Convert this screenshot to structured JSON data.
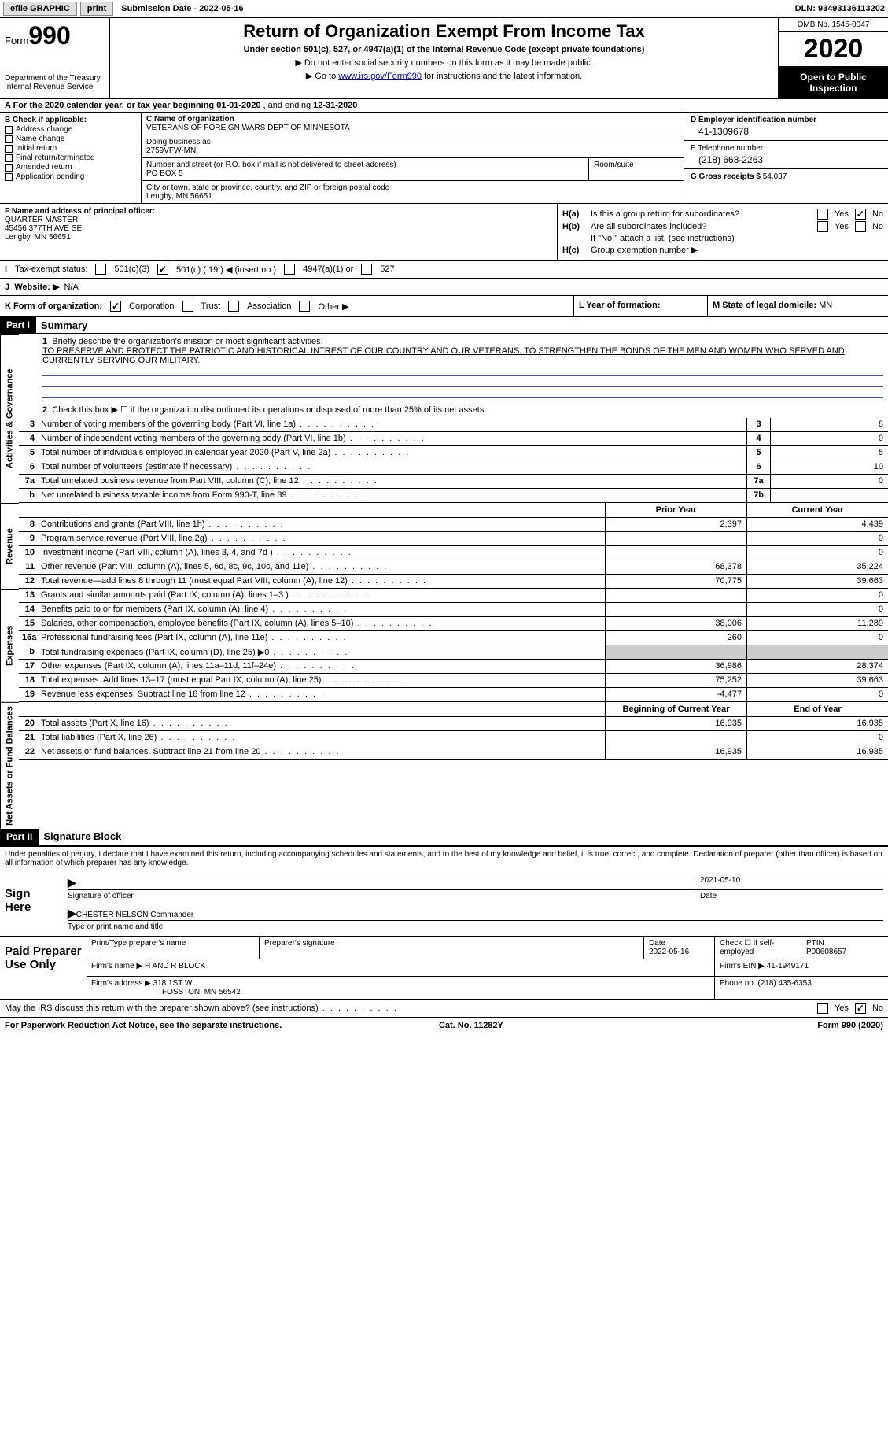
{
  "topbar": {
    "efile": "efile GRAPHIC",
    "print": "print",
    "submission_label": "Submission Date - ",
    "submission_date": "2022-05-16",
    "dln_label": "DLN: ",
    "dln": "93493136113202"
  },
  "header": {
    "form_word": "Form",
    "form_num": "990",
    "dept1": "Department of the Treasury",
    "dept2": "Internal Revenue Service",
    "title": "Return of Organization Exempt From Income Tax",
    "subtitle": "Under section 501(c), 527, or 4947(a)(1) of the Internal Revenue Code (except private foundations)",
    "note1": "▶ Do not enter social security numbers on this form as it may be made public.",
    "note2_pre": "▶ Go to ",
    "note2_link": "www.irs.gov/Form990",
    "note2_post": " for instructions and the latest information.",
    "omb": "OMB No. 1545-0047",
    "year": "2020",
    "open1": "Open to Public",
    "open2": "Inspection"
  },
  "period": {
    "prefix": "A For the 2020 calendar year, or tax year beginning ",
    "begin": "01-01-2020",
    "mid": " , and ending ",
    "end": "12-31-2020"
  },
  "boxB": {
    "label": "B Check if applicable:",
    "opts": [
      "Address change",
      "Name change",
      "Initial return",
      "Final return/terminated",
      "Amended return",
      "Application pending"
    ]
  },
  "boxC": {
    "name_label": "C Name of organization",
    "name": "VETERANS OF FOREIGN WARS DEPT OF MINNESOTA",
    "dba_label": "Doing business as",
    "dba": "2759VFW-MN",
    "street_label": "Number and street (or P.O. box if mail is not delivered to street address)",
    "room_label": "Room/suite",
    "street": "PO BOX 5",
    "city_label": "City or town, state or province, country, and ZIP or foreign postal code",
    "city": "Lengby, MN  56651"
  },
  "boxD": {
    "ein_label": "D Employer identification number",
    "ein": "41-1309678",
    "phone_label": "E Telephone number",
    "phone": "(218) 668-2263",
    "gross_label": "G Gross receipts $ ",
    "gross": "54,037"
  },
  "boxF": {
    "label": "F Name and address of principal officer:",
    "name": "QUARTER MASTER",
    "street": "45456 377TH AVE SE",
    "city": "Lengby, MN  56651"
  },
  "boxH": {
    "a_label": "H(a)",
    "a_text": "Is this a group return for subordinates?",
    "b_label": "H(b)",
    "b_text": "Are all subordinates included?",
    "b_note": "If \"No,\" attach a list. (see instructions)",
    "c_label": "H(c)",
    "c_text": "Group exemption number ▶",
    "yes": "Yes",
    "no": "No"
  },
  "rowI": {
    "label": "I",
    "text": "Tax-exempt status:",
    "o1": "501(c)(3)",
    "o2": "501(c) ( 19 ) ◀ (insert no.)",
    "o3": "4947(a)(1) or",
    "o4": "527"
  },
  "rowJ": {
    "label": "J",
    "text": "Website: ▶",
    "val": "N/A"
  },
  "rowK": {
    "label": "K Form of organization:",
    "o1": "Corporation",
    "o2": "Trust",
    "o3": "Association",
    "o4": "Other ▶",
    "l_label": "L Year of formation:",
    "m_label": "M State of legal domicile: ",
    "m_val": "MN"
  },
  "part1": {
    "tag": "Part I",
    "title": "Summary",
    "q1_label": "1",
    "q1_text": "Briefly describe the organization's mission or most significant activities:",
    "mission": "TO PRESERVE AND PROTECT THE PATRIOTIC AND HISTORICAL INTREST OF OUR COUNTRY AND OUR VETERANS, TO STRENGTHEN THE BONDS OF THE MEN AND WOMEN WHO SERVED AND CURRENTLY SERVING OUR MILITARY.",
    "q2_label": "2",
    "q2_text": "Check this box ▶ ☐ if the organization discontinued its operations or disposed of more than 25% of its net assets."
  },
  "side": {
    "gov": "Activities & Governance",
    "rev": "Revenue",
    "exp": "Expenses",
    "net": "Net Assets or Fund Balances"
  },
  "govLines": [
    {
      "n": "3",
      "d": "Number of voting members of the governing body (Part VI, line 1a)",
      "b": "3",
      "v": "8"
    },
    {
      "n": "4",
      "d": "Number of independent voting members of the governing body (Part VI, line 1b)",
      "b": "4",
      "v": "0"
    },
    {
      "n": "5",
      "d": "Total number of individuals employed in calendar year 2020 (Part V, line 2a)",
      "b": "5",
      "v": "5"
    },
    {
      "n": "6",
      "d": "Total number of volunteers (estimate if necessary)",
      "b": "6",
      "v": "10"
    },
    {
      "n": "7a",
      "d": "Total unrelated business revenue from Part VIII, column (C), line 12",
      "b": "7a",
      "v": "0"
    },
    {
      "n": "b",
      "d": "Net unrelated business taxable income from Form 990-T, line 39",
      "b": "7b",
      "v": ""
    }
  ],
  "colHeads": {
    "prior": "Prior Year",
    "current": "Current Year",
    "beg": "Beginning of Current Year",
    "end": "End of Year"
  },
  "revLines": [
    {
      "n": "8",
      "d": "Contributions and grants (Part VIII, line 1h)",
      "p": "2,397",
      "c": "4,439"
    },
    {
      "n": "9",
      "d": "Program service revenue (Part VIII, line 2g)",
      "p": "",
      "c": "0"
    },
    {
      "n": "10",
      "d": "Investment income (Part VIII, column (A), lines 3, 4, and 7d )",
      "p": "",
      "c": "0"
    },
    {
      "n": "11",
      "d": "Other revenue (Part VIII, column (A), lines 5, 6d, 8c, 9c, 10c, and 11e)",
      "p": "68,378",
      "c": "35,224"
    },
    {
      "n": "12",
      "d": "Total revenue—add lines 8 through 11 (must equal Part VIII, column (A), line 12)",
      "p": "70,775",
      "c": "39,663"
    }
  ],
  "expLines": [
    {
      "n": "13",
      "d": "Grants and similar amounts paid (Part IX, column (A), lines 1–3 )",
      "p": "",
      "c": "0"
    },
    {
      "n": "14",
      "d": "Benefits paid to or for members (Part IX, column (A), line 4)",
      "p": "",
      "c": "0"
    },
    {
      "n": "15",
      "d": "Salaries, other compensation, employee benefits (Part IX, column (A), lines 5–10)",
      "p": "38,006",
      "c": "11,289"
    },
    {
      "n": "16a",
      "d": "Professional fundraising fees (Part IX, column (A), line 11e)",
      "p": "260",
      "c": "0"
    },
    {
      "n": "b",
      "d": "Total fundraising expenses (Part IX, column (D), line 25) ▶0",
      "p": "grey",
      "c": "grey"
    },
    {
      "n": "17",
      "d": "Other expenses (Part IX, column (A), lines 11a–11d, 11f–24e)",
      "p": "36,986",
      "c": "28,374"
    },
    {
      "n": "18",
      "d": "Total expenses. Add lines 13–17 (must equal Part IX, column (A), line 25)",
      "p": "75,252",
      "c": "39,663"
    },
    {
      "n": "19",
      "d": "Revenue less expenses. Subtract line 18 from line 12",
      "p": "-4,477",
      "c": "0"
    }
  ],
  "netLines": [
    {
      "n": "20",
      "d": "Total assets (Part X, line 16)",
      "p": "16,935",
      "c": "16,935"
    },
    {
      "n": "21",
      "d": "Total liabilities (Part X, line 26)",
      "p": "",
      "c": "0"
    },
    {
      "n": "22",
      "d": "Net assets or fund balances. Subtract line 21 from line 20",
      "p": "16,935",
      "c": "16,935"
    }
  ],
  "part2": {
    "tag": "Part II",
    "title": "Signature Block"
  },
  "declare": "Under penalties of perjury, I declare that I have examined this return, including accompanying schedules and statements, and to the best of my knowledge and belief, it is true, correct, and complete. Declaration of preparer (other than officer) is based on all information of which preparer has any knowledge.",
  "sign": {
    "here": "Sign Here",
    "sig_label": "Signature of officer",
    "date": "2021-05-10",
    "date_label": "Date",
    "name": "CHESTER NELSON Commander",
    "name_label": "Type or print name and title"
  },
  "prep": {
    "label": "Paid Preparer Use Only",
    "h1": "Print/Type preparer's name",
    "h2": "Preparer's signature",
    "h3_label": "Date",
    "h3": "2022-05-16",
    "h4": "Check ☐ if self-employed",
    "h5_label": "PTIN",
    "h5": "P00608657",
    "firm_name_label": "Firm's name    ▶ ",
    "firm_name": "H AND R BLOCK",
    "firm_ein_label": "Firm's EIN ▶ ",
    "firm_ein": "41-1949171",
    "firm_addr_label": "Firm's address ▶ ",
    "firm_addr1": "318 1ST W",
    "firm_addr2": "FOSSTON, MN  56542",
    "phone_label": "Phone no. ",
    "phone": "(218) 435-6353"
  },
  "discuss": {
    "text": "May the IRS discuss this return with the preparer shown above? (see instructions)",
    "yes": "Yes",
    "no": "No"
  },
  "footer": {
    "left": "For Paperwork Reduction Act Notice, see the separate instructions.",
    "mid": "Cat. No. 11282Y",
    "right": "Form 990 (2020)"
  }
}
